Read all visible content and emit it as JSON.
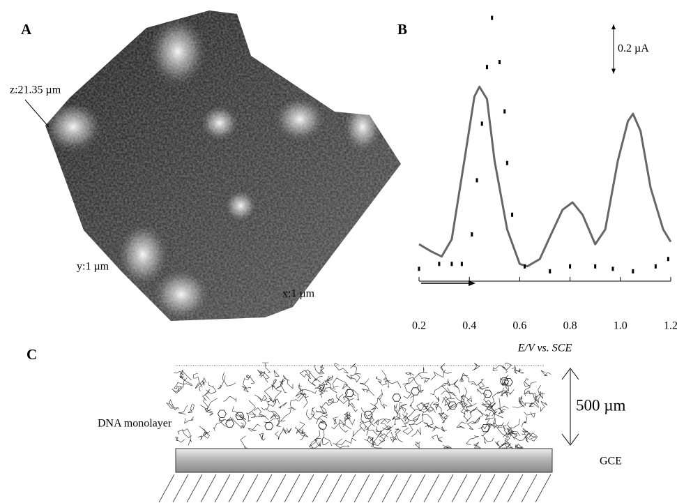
{
  "panels": {
    "A": {
      "label": "A",
      "z_label": "z:21.35 µm",
      "y_label": "y:1 µm",
      "x_label": "x:1 µm"
    },
    "B": {
      "label": "B"
    },
    "C": {
      "label": "C",
      "layer_label": "DNA monolayer",
      "thickness_label": "500 µm",
      "electrode_label": "GCE"
    }
  },
  "chart_data": {
    "type": "line",
    "x_label": "E/V vs. SCE",
    "xlim": [
      0.2,
      1.2
    ],
    "xticks": [
      0.2,
      0.4,
      0.6,
      0.8,
      {
        "value": 1,
        "label": "1.0"
      },
      1.2
    ],
    "ylim": [
      0,
      1.1
    ],
    "scale_bar": {
      "value": 0.2,
      "label": "0.2 µA"
    },
    "series": [
      {
        "color": "#666666",
        "style": "solid",
        "x": [
          0.2,
          0.25,
          0.29,
          0.33,
          0.38,
          0.42,
          0.44,
          0.47,
          0.5,
          0.55,
          0.6,
          0.63,
          0.68,
          0.72,
          0.77,
          0.81,
          0.85,
          0.9,
          0.94,
          0.99,
          1.03,
          1.05,
          1.08,
          1.12,
          1.17,
          1.2
        ],
        "values": [
          0.15,
          0.12,
          0.1,
          0.17,
          0.49,
          0.75,
          0.79,
          0.74,
          0.49,
          0.21,
          0.07,
          0.06,
          0.09,
          0.18,
          0.29,
          0.32,
          0.27,
          0.15,
          0.21,
          0.49,
          0.65,
          0.68,
          0.61,
          0.38,
          0.21,
          0.16
        ]
      },
      {
        "color": "#000000",
        "style": "dotted",
        "x": [
          0.2,
          0.28,
          0.33,
          0.37,
          0.41,
          0.43,
          0.45,
          0.47,
          0.49,
          0.52,
          0.54,
          0.55,
          0.57,
          0.62,
          0.72,
          0.8,
          0.9,
          0.97,
          1.05,
          1.14,
          1.19
        ],
        "values": [
          0.05,
          0.07,
          0.07,
          0.07,
          0.19,
          0.41,
          0.64,
          0.87,
          1.07,
          0.89,
          0.69,
          0.48,
          0.27,
          0.06,
          0.04,
          0.06,
          0.06,
          0.05,
          0.04,
          0.06,
          0.09
        ]
      }
    ]
  }
}
